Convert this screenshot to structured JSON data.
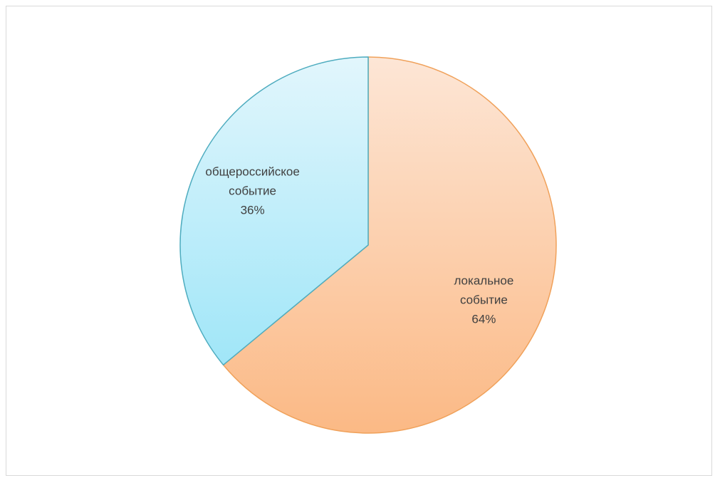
{
  "chart_data": {
    "type": "pie",
    "title": "",
    "categories": [
      "локальное событие",
      "общероссийское событие"
    ],
    "values": [
      64,
      36
    ],
    "series": [
      {
        "values": [
          64,
          36
        ]
      }
    ],
    "slices": [
      {
        "category": "локальное событие",
        "label_lines": [
          "локальное",
          "событие"
        ],
        "value": 64,
        "percent_label": "64%",
        "gradient": [
          "#fde6d6",
          "#fbb985"
        ],
        "edge_color": "#f0a15a"
      },
      {
        "category": "общероссийское событие",
        "label_lines": [
          "общероссийское",
          "событие"
        ],
        "value": 36,
        "percent_label": "36%",
        "gradient": [
          "#e2f6fc",
          "#a0e6f8"
        ],
        "edge_color": "#4eacbf"
      }
    ],
    "start_angle": "12 o'clock",
    "direction": "clockwise",
    "legend": "none",
    "data_labels": "inside"
  }
}
